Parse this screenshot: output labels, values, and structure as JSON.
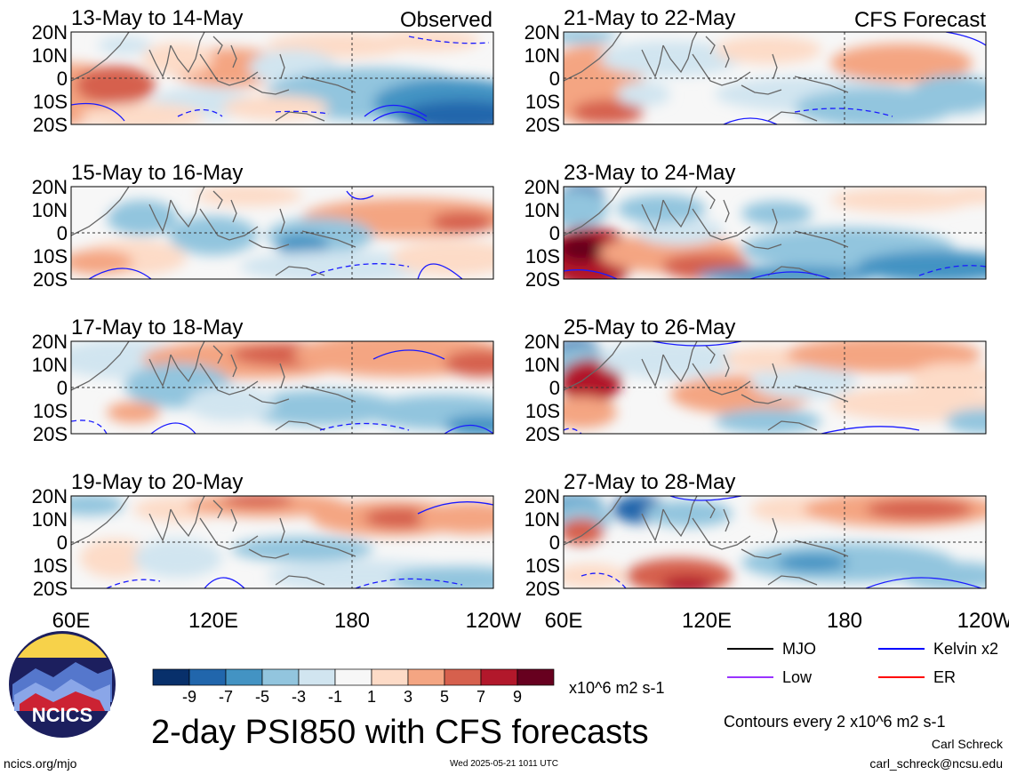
{
  "header": {
    "left_tag": "Observed",
    "right_tag": "CFS Forecast"
  },
  "panels": [
    {
      "title": "13-May to 14-May"
    },
    {
      "title": "15-May to 16-May"
    },
    {
      "title": "17-May to 18-May"
    },
    {
      "title": "19-May to 20-May"
    },
    {
      "title": "21-May to 22-May"
    },
    {
      "title": "23-May to 24-May"
    },
    {
      "title": "25-May to 26-May"
    },
    {
      "title": "27-May to 28-May"
    }
  ],
  "axes": {
    "lat_ticks": [
      "20N",
      "10N",
      "0",
      "10S",
      "20S"
    ],
    "lon_ticks": [
      "60E",
      "120E",
      "180",
      "120W"
    ]
  },
  "colorbar": {
    "labels": [
      "-9",
      "-7",
      "-5",
      "-3",
      "-1",
      "1",
      "3",
      "5",
      "7",
      "9"
    ],
    "colors": [
      "#08306b",
      "#2166ac",
      "#4393c3",
      "#92c5de",
      "#d1e5f0",
      "#f7f7f7",
      "#fddbc7",
      "#f4a582",
      "#d6604d",
      "#b2182b",
      "#67001f"
    ],
    "units": "x10^6 m2 s-1"
  },
  "legend": {
    "items": [
      {
        "label": "MJO",
        "color": "#000000"
      },
      {
        "label": "Kelvin x2",
        "color": "#0000ff"
      },
      {
        "label": "Low",
        "color": "#9933ff"
      },
      {
        "label": "ER",
        "color": "#ff0000"
      }
    ],
    "contour_note": "Contours every 2 x10^6 m2 s-1"
  },
  "footer": {
    "main_title": "2-day PSI850 with CFS forecasts",
    "logo_text": "NCICS",
    "url": "ncics.org/mjo",
    "timestamp": "Wed 2025-05-21 1011 UTC",
    "author": "Carl Schreck",
    "email": "carl_schreck@ncsu.edu"
  },
  "chart_data": {
    "type": "heatmap",
    "variable": "PSI850",
    "units": "x10^6 m2 s-1",
    "lon_range": [
      "60E",
      "120W"
    ],
    "lat_range": [
      "20S",
      "20N"
    ],
    "contour_levels": [
      -9,
      -7,
      -5,
      -3,
      -1,
      1,
      3,
      5,
      7,
      9
    ],
    "panels": [
      {
        "title": "13-May to 14-May",
        "source": "Observed"
      },
      {
        "title": "15-May to 16-May",
        "source": "Observed"
      },
      {
        "title": "17-May to 18-May",
        "source": "Observed"
      },
      {
        "title": "19-May to 20-May",
        "source": "Observed"
      },
      {
        "title": "21-May to 22-May",
        "source": "CFS Forecast"
      },
      {
        "title": "23-May to 24-May",
        "source": "CFS Forecast"
      },
      {
        "title": "25-May to 26-May",
        "source": "CFS Forecast"
      },
      {
        "title": "27-May to 28-May",
        "source": "CFS Forecast"
      }
    ]
  }
}
